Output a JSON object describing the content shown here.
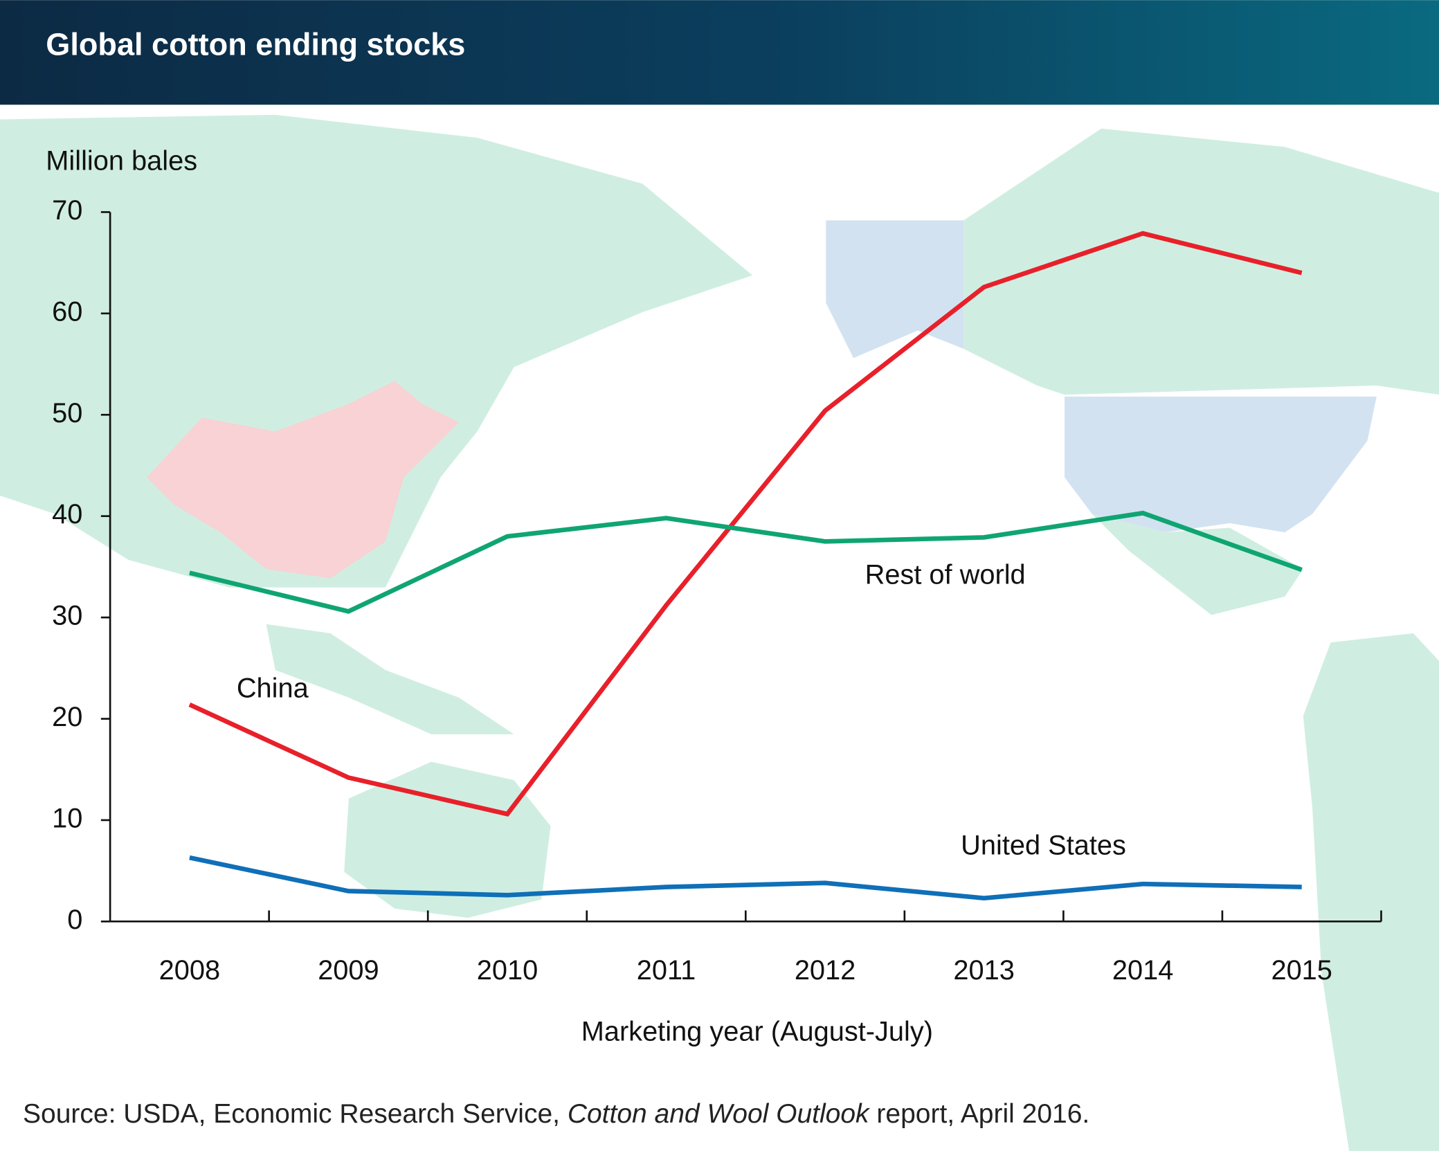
{
  "chart_data": {
    "type": "line",
    "title": "Global cotton ending stocks",
    "y_label": "Million bales",
    "x_label": "Marketing year (August-July)",
    "source": {
      "prefix": "Source: USDA, Economic Research Service, ",
      "report": "Cotton and Wool Outlook",
      "suffix": " report, April 2016."
    },
    "categories": [
      "2008",
      "2009",
      "2010",
      "2011",
      "2012",
      "2013",
      "2014",
      "2015"
    ],
    "series": [
      {
        "name": "China",
        "color": "#e8202a",
        "values": [
          21.4,
          14.2,
          10.6,
          31.2,
          50.4,
          62.6,
          67.9,
          64.0
        ]
      },
      {
        "name": "Rest of world",
        "color": "#0fa573",
        "values": [
          34.4,
          30.6,
          38.0,
          39.8,
          37.5,
          37.9,
          40.3,
          34.7
        ]
      },
      {
        "name": "United States",
        "color": "#0f6fb8",
        "values": [
          6.3,
          3.0,
          2.6,
          3.4,
          3.8,
          2.3,
          3.7,
          3.4
        ]
      }
    ],
    "ylim": [
      0,
      70
    ],
    "yticks": [
      0,
      10,
      20,
      30,
      40,
      50,
      60,
      70
    ]
  }
}
